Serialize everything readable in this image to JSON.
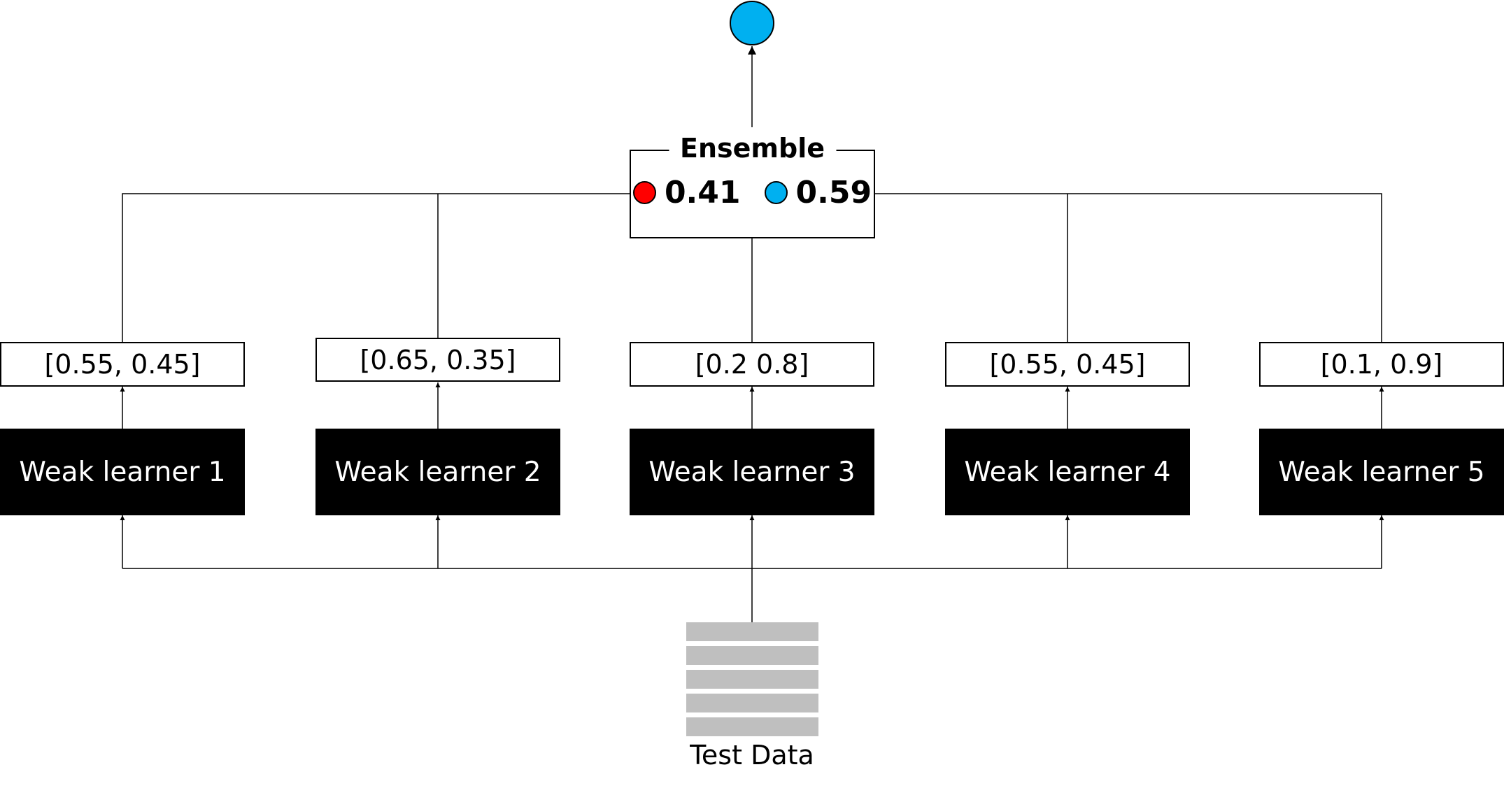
{
  "output": {
    "color": "#00b0f0"
  },
  "ensemble": {
    "title": "Ensemble",
    "classes": [
      {
        "color": "#ff0000",
        "value": "0.41"
      },
      {
        "color": "#00b0f0",
        "value": "0.59"
      }
    ]
  },
  "learners": [
    {
      "label": "Weak learner 1",
      "probs": "[0.55, 0.45]"
    },
    {
      "label": "Weak learner 2",
      "probs": "[0.65, 0.35]"
    },
    {
      "label": "Weak learner 3",
      "probs": "[0.2 0.8]"
    },
    {
      "label": "Weak learner 4",
      "probs": "[0.55, 0.45]"
    },
    {
      "label": "Weak learner 5",
      "probs": "[0.1, 0.9]"
    }
  ],
  "test_data": {
    "label": "Test Data"
  }
}
